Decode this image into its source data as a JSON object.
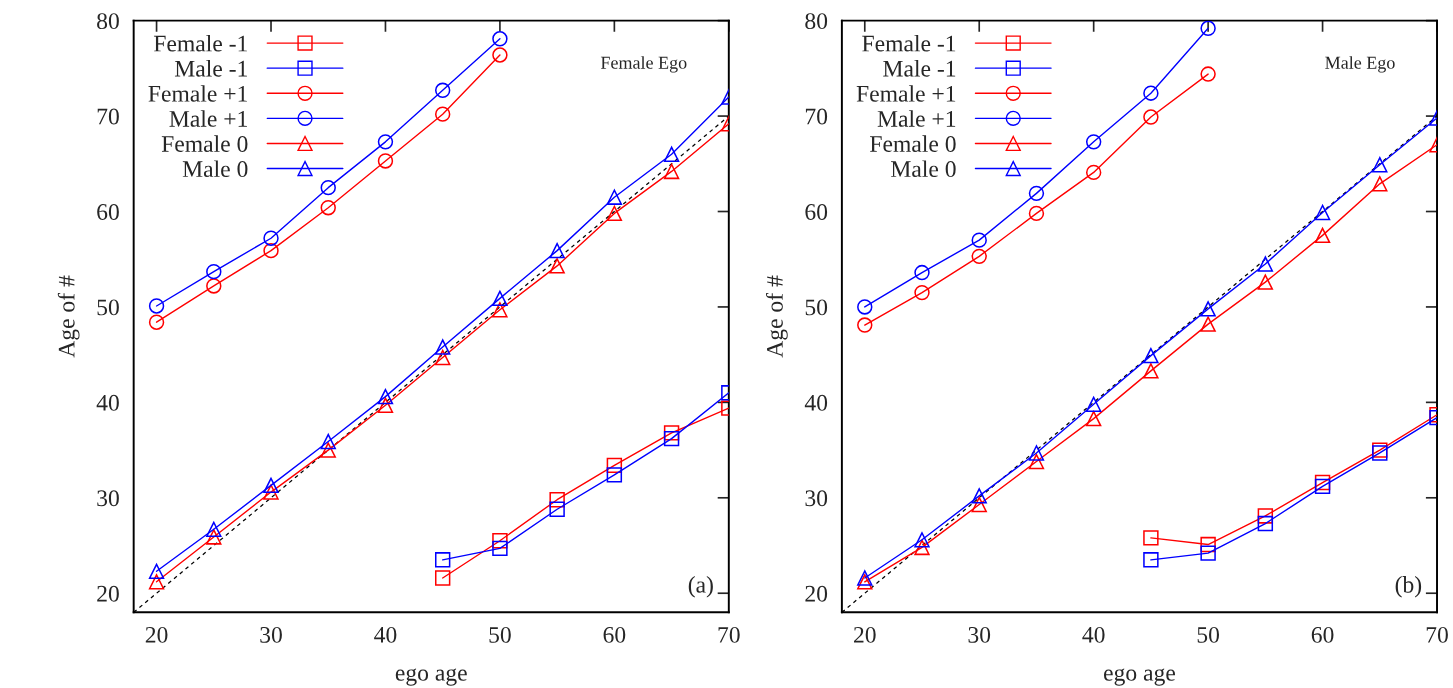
{
  "chart_data": [
    {
      "type": "line",
      "xlabel": "ego age",
      "ylabel": "Age of #",
      "xlim": [
        18,
        70
      ],
      "ylim": [
        18,
        80
      ],
      "xticks": [
        20,
        30,
        40,
        50,
        60,
        70
      ],
      "yticks": [
        20,
        30,
        40,
        50,
        60,
        70,
        80
      ],
      "grid": false,
      "legend": "top left",
      "annotations": [
        "Female Ego",
        "(a)"
      ],
      "series": [
        {
          "name": "Female -1",
          "color": "#ff0000",
          "marker": "square",
          "x": [
            45,
            50,
            55,
            60,
            65,
            70
          ],
          "values": [
            21.6,
            25.5,
            29.8,
            33.4,
            36.8,
            39.4
          ]
        },
        {
          "name": "Male -1",
          "color": "#0000ff",
          "marker": "square",
          "x": [
            45,
            50,
            55,
            60,
            65,
            70
          ],
          "values": [
            23.5,
            24.7,
            28.8,
            32.4,
            36.2,
            41.0
          ]
        },
        {
          "name": "Female +1",
          "color": "#ff0000",
          "marker": "circle",
          "x": [
            20,
            25,
            30,
            35,
            40,
            45,
            50
          ],
          "values": [
            48.4,
            52.2,
            55.9,
            60.4,
            65.3,
            70.2,
            76.4
          ]
        },
        {
          "name": "Male +1",
          "color": "#0000ff",
          "marker": "circle",
          "x": [
            20,
            25,
            30,
            35,
            40,
            45,
            50
          ],
          "values": [
            50.1,
            53.7,
            57.2,
            62.5,
            67.3,
            72.7,
            78.1
          ]
        },
        {
          "name": "Female 0",
          "color": "#ff0000",
          "marker": "triangle",
          "x": [
            20,
            25,
            30,
            35,
            40,
            45,
            50,
            55,
            60,
            65,
            70
          ],
          "values": [
            21.2,
            25.9,
            30.6,
            35.0,
            39.7,
            44.7,
            49.7,
            54.3,
            59.8,
            64.2,
            69.2
          ]
        },
        {
          "name": "Male 0",
          "color": "#0000ff",
          "marker": "triangle",
          "x": [
            20,
            25,
            30,
            35,
            40,
            45,
            50,
            55,
            60,
            65,
            70
          ],
          "values": [
            22.3,
            26.7,
            31.3,
            35.9,
            40.6,
            45.8,
            50.9,
            55.9,
            61.5,
            66.0,
            72.0
          ]
        },
        {
          "color": "#000000",
          "marker": "none",
          "line_style": "dashed",
          "x": [
            18,
            70
          ],
          "values": [
            18,
            70
          ]
        }
      ]
    },
    {
      "type": "line",
      "xlabel": "ego age",
      "ylabel": "Age of #",
      "xlim": [
        18,
        70
      ],
      "ylim": [
        18,
        80
      ],
      "xticks": [
        20,
        30,
        40,
        50,
        60,
        70
      ],
      "yticks": [
        20,
        30,
        40,
        50,
        60,
        70,
        80
      ],
      "grid": false,
      "legend": "top left",
      "annotations": [
        "Male Ego",
        "(b)"
      ],
      "series": [
        {
          "name": "Female -1",
          "color": "#ff0000",
          "marker": "square",
          "x": [
            45,
            50,
            55,
            60,
            65,
            70
          ],
          "values": [
            25.8,
            25.1,
            28.1,
            31.6,
            35.0,
            38.7
          ]
        },
        {
          "name": "Male -1",
          "color": "#0000ff",
          "marker": "square",
          "x": [
            45,
            50,
            55,
            60,
            65,
            70
          ],
          "values": [
            23.5,
            24.2,
            27.3,
            31.2,
            34.7,
            38.4
          ]
        },
        {
          "name": "Female +1",
          "color": "#ff0000",
          "marker": "circle",
          "x": [
            20,
            25,
            30,
            35,
            40,
            45,
            50
          ],
          "values": [
            48.1,
            51.5,
            55.3,
            59.8,
            64.1,
            69.9,
            74.4
          ]
        },
        {
          "name": "Male +1",
          "color": "#0000ff",
          "marker": "circle",
          "x": [
            20,
            25,
            30,
            35,
            40,
            45,
            50
          ],
          "values": [
            50.0,
            53.6,
            57.0,
            61.9,
            67.3,
            72.4,
            79.2
          ]
        },
        {
          "name": "Female 0",
          "color": "#ff0000",
          "marker": "triangle",
          "x": [
            20,
            25,
            30,
            35,
            40,
            45,
            50,
            55,
            60,
            65,
            70
          ],
          "values": [
            21.2,
            24.8,
            29.3,
            33.8,
            38.3,
            43.3,
            48.2,
            52.6,
            57.5,
            62.9,
            67.0
          ]
        },
        {
          "name": "Male 0",
          "color": "#0000ff",
          "marker": "triangle",
          "x": [
            20,
            25,
            30,
            35,
            40,
            45,
            50,
            55,
            60,
            65,
            70
          ],
          "values": [
            21.6,
            25.6,
            30.2,
            34.7,
            39.8,
            44.9,
            49.8,
            54.5,
            59.9,
            64.9,
            69.8
          ]
        },
        {
          "color": "#000000",
          "marker": "none",
          "line_style": "dashed",
          "x": [
            18,
            70
          ],
          "values": [
            18,
            70
          ]
        }
      ]
    }
  ]
}
